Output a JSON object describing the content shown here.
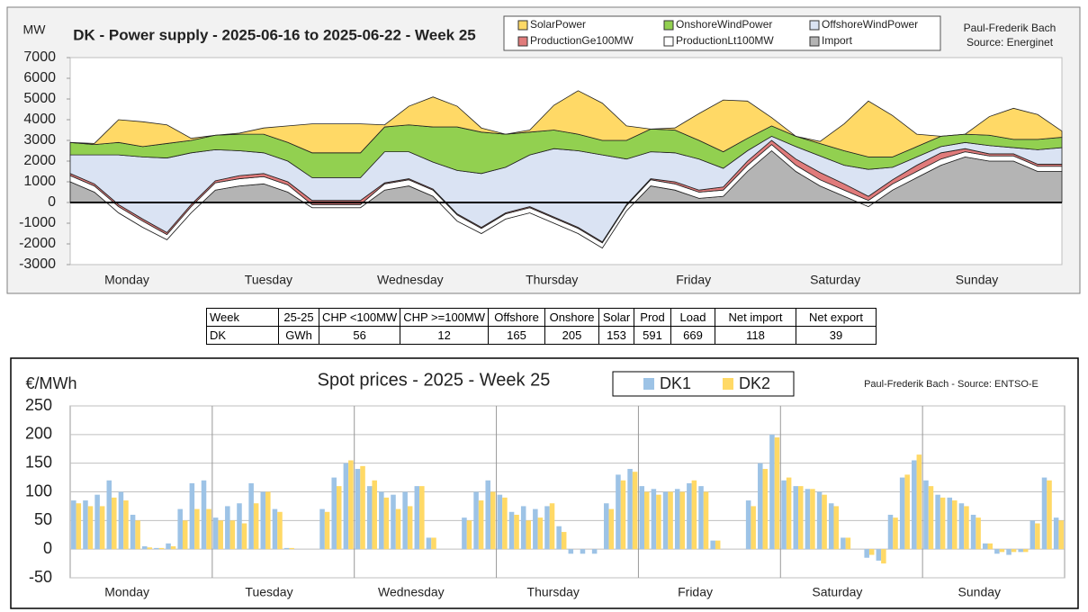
{
  "chart_data": [
    {
      "type": "area",
      "stacked": true,
      "title": "DK - Power supply - 2025-06-16 to 2025-06-22 - Week 25",
      "y_label": "MW",
      "credits": [
        "Paul-Frederik Bach",
        "Source: Energinet"
      ],
      "day_labels": [
        "Monday",
        "Tuesday",
        "Wednesday",
        "Thursday",
        "Friday",
        "Saturday",
        "Sunday"
      ],
      "ylim": [
        -3000,
        7000
      ],
      "yticks": [
        -3000,
        -2000,
        -1000,
        0,
        1000,
        2000,
        3000,
        4000,
        5000,
        6000,
        7000
      ],
      "series": [
        {
          "name": "SolarPower",
          "color": "#ffd966",
          "values": [
            0,
            50,
            1100,
            1200,
            900,
            100,
            0,
            50,
            300,
            800,
            1400,
            1400,
            1400,
            100,
            900,
            1450,
            1000,
            200,
            0,
            100,
            1200,
            2100,
            1800,
            700,
            0,
            100,
            1300,
            2500,
            1800,
            400,
            0,
            100,
            1300,
            2700,
            2000,
            600,
            0,
            0,
            900,
            1500,
            1200,
            300
          ]
        },
        {
          "name": "OnshoreWindPower",
          "color": "#92d050",
          "values": [
            600,
            500,
            600,
            500,
            700,
            600,
            700,
            800,
            900,
            900,
            1200,
            1200,
            1200,
            1200,
            1300,
            1700,
            2100,
            2000,
            1600,
            1100,
            900,
            800,
            700,
            900,
            1100,
            1100,
            900,
            800,
            600,
            500,
            500,
            600,
            700,
            600,
            500,
            500,
            500,
            400,
            500,
            400,
            500,
            500
          ]
        },
        {
          "name": "OffshoreWindPower",
          "color": "#dae3f3",
          "values": [
            900,
            1400,
            2400,
            3000,
            3600,
            2500,
            1500,
            1200,
            1000,
            1000,
            1100,
            1100,
            1100,
            1500,
            1300,
            1300,
            2100,
            2600,
            2200,
            2500,
            3300,
            3700,
            4200,
            2200,
            1300,
            1400,
            1500,
            900,
            500,
            200,
            600,
            800,
            900,
            1300,
            600,
            400,
            300,
            300,
            400,
            300,
            700,
            800
          ]
        },
        {
          "name": "ProductionGe100MW",
          "color": "#e07b7b",
          "values": [
            100,
            100,
            100,
            100,
            100,
            100,
            100,
            150,
            150,
            150,
            200,
            200,
            200,
            50,
            50,
            50,
            50,
            50,
            50,
            50,
            50,
            50,
            50,
            50,
            50,
            100,
            100,
            150,
            200,
            200,
            300,
            350,
            300,
            200,
            200,
            300,
            300,
            150,
            100,
            100,
            100,
            100
          ]
        },
        {
          "name": "ProductionLt100MW",
          "color": "#ffffff",
          "values": [
            300,
            300,
            300,
            300,
            250,
            300,
            350,
            350,
            350,
            350,
            150,
            150,
            150,
            300,
            300,
            300,
            300,
            250,
            250,
            250,
            250,
            250,
            250,
            250,
            300,
            300,
            300,
            300,
            300,
            300,
            300,
            300,
            300,
            300,
            300,
            300,
            300,
            250,
            250,
            250,
            250,
            250
          ]
        },
        {
          "name": "Import",
          "color": "#b4b4b4",
          "values": [
            1000,
            500,
            -500,
            -1200,
            -1800,
            -500,
            600,
            800,
            900,
            500,
            -250,
            -250,
            -250,
            600,
            800,
            300,
            -900,
            -1500,
            -800,
            -500,
            -1000,
            -1500,
            -2200,
            -400,
            800,
            600,
            200,
            300,
            1500,
            2500,
            1500,
            800,
            300,
            -200,
            600,
            1200,
            1800,
            2200,
            2000,
            2000,
            1500,
            1500
          ]
        }
      ]
    },
    {
      "type": "bar",
      "title": "Spot prices - 2025 - Week 25",
      "y_label": "€/MWh",
      "credit": "Paul-Frederik Bach - Source: ENTSO-E",
      "day_labels": [
        "Monday",
        "Tuesday",
        "Wednesday",
        "Thursday",
        "Friday",
        "Saturday",
        "Sunday"
      ],
      "ylim": [
        -50,
        250
      ],
      "yticks": [
        -50,
        0,
        50,
        100,
        150,
        200,
        250
      ],
      "grid": true,
      "series": [
        {
          "name": "DK1",
          "color": "#9dc3e6",
          "values": [
            85,
            85,
            95,
            120,
            100,
            60,
            5,
            2,
            10,
            70,
            115,
            120,
            55,
            75,
            80,
            115,
            100,
            70,
            2,
            0,
            0,
            70,
            125,
            150,
            140,
            110,
            100,
            95,
            100,
            110,
            20,
            0,
            0,
            55,
            100,
            120,
            95,
            65,
            75,
            70,
            75,
            40,
            -8,
            -8,
            -8,
            80,
            130,
            140,
            110,
            105,
            100,
            105,
            115,
            110,
            15,
            0,
            0,
            85,
            150,
            200,
            120,
            110,
            105,
            100,
            80,
            20,
            0,
            -15,
            -20,
            60,
            125,
            155,
            120,
            95,
            90,
            80,
            60,
            10,
            -8,
            -10,
            -5,
            50,
            125,
            55
          ]
        },
        {
          "name": "DK2",
          "color": "#ffd966",
          "values": [
            80,
            75,
            75,
            90,
            85,
            50,
            3,
            2,
            5,
            50,
            70,
            70,
            50,
            50,
            45,
            80,
            100,
            65,
            2,
            0,
            0,
            65,
            110,
            155,
            145,
            120,
            90,
            70,
            75,
            110,
            20,
            0,
            0,
            50,
            85,
            100,
            90,
            60,
            50,
            55,
            80,
            30,
            0,
            0,
            0,
            70,
            120,
            135,
            100,
            95,
            100,
            100,
            120,
            100,
            15,
            0,
            0,
            75,
            140,
            195,
            125,
            110,
            105,
            95,
            75,
            20,
            0,
            -10,
            -25,
            55,
            130,
            165,
            110,
            90,
            85,
            75,
            55,
            10,
            -5,
            -5,
            -5,
            45,
            120,
            50
          ]
        }
      ]
    }
  ],
  "table": {
    "header": [
      "Week",
      "25-25",
      "CHP <100MW",
      "CHP >=100MW",
      "Offshore",
      "Onshore",
      "Solar",
      "Prod",
      "Load",
      "Net import",
      "Net export"
    ],
    "rows": [
      [
        "DK",
        "GWh",
        "56",
        "12",
        "165",
        "205",
        "153",
        "591",
        "669",
        "118",
        "39"
      ]
    ]
  }
}
